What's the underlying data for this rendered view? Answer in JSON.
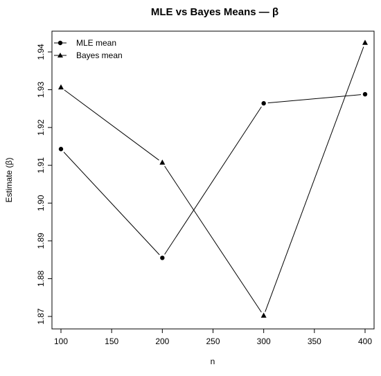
{
  "chart_data": {
    "type": "line",
    "title": "MLE vs Bayes Means — β",
    "xlabel": "n",
    "ylabel": "Estimate (β)",
    "x": [
      100,
      200,
      300,
      400
    ],
    "xlim": [
      100,
      400
    ],
    "ylim": [
      1.87,
      1.94
    ],
    "x_ticks": [
      100,
      150,
      200,
      250,
      300,
      350,
      400
    ],
    "y_ticks": [
      1.87,
      1.88,
      1.89,
      1.9,
      1.91,
      1.92,
      1.93,
      1.94
    ],
    "y_tick_labels": [
      "1.87",
      "1.88",
      "1.89",
      "1.90",
      "1.91",
      "1.92",
      "1.93",
      "1.94"
    ],
    "grid": false,
    "legend_position": "top-left",
    "series": [
      {
        "name": "MLE mean",
        "marker": "circle",
        "values": [
          1.9143,
          1.8855,
          1.9264,
          1.9288
        ]
      },
      {
        "name": "Bayes mean",
        "marker": "triangle",
        "values": [
          1.9306,
          1.9107,
          1.8702,
          1.9424
        ]
      }
    ]
  }
}
